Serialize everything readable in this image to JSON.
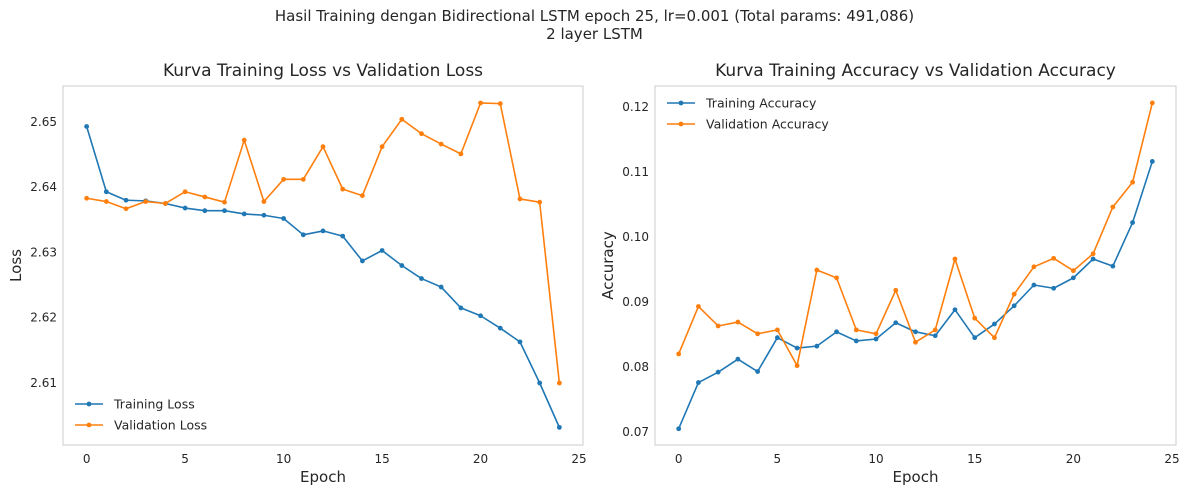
{
  "figure": {
    "suptitle_line1": "Hasil Training dengan Bidirectional LSTM epoch 25, lr=0.001 (Total params: 491,086)",
    "suptitle_line2": "2 layer LSTM"
  },
  "colors": {
    "training": "#1f77b4",
    "validation": "#ff7f0e",
    "axes_edge": "#cccccc",
    "text": "#262626"
  },
  "chart_data": [
    {
      "type": "line",
      "title": "Kurva Training Loss vs Validation Loss",
      "xlabel": "Epoch",
      "ylabel": "Loss",
      "xlim": [
        -1.2,
        25.2
      ],
      "ylim": [
        2.6005,
        2.6555
      ],
      "xticks": [
        0,
        5,
        10,
        15,
        20,
        25
      ],
      "yticks": [
        2.61,
        2.62,
        2.63,
        2.64,
        2.65
      ],
      "ytick_labels": [
        "2.61",
        "2.62",
        "2.63",
        "2.64",
        "2.65"
      ],
      "grid": false,
      "legend_position": "lower-left",
      "x": [
        0,
        1,
        2,
        3,
        4,
        5,
        6,
        7,
        8,
        9,
        10,
        11,
        12,
        13,
        14,
        15,
        16,
        17,
        18,
        19,
        20,
        21,
        22,
        23,
        24
      ],
      "series": [
        {
          "name": "Training Loss",
          "color": "#1f77b4",
          "values": [
            2.6493,
            2.6393,
            2.638,
            2.6379,
            2.6375,
            2.6368,
            2.6364,
            2.6364,
            2.6359,
            2.6357,
            2.6352,
            2.6327,
            2.6333,
            2.6325,
            2.6287,
            2.6303,
            2.628,
            2.626,
            2.6247,
            2.6215,
            2.6203,
            2.6184,
            2.6163,
            2.61,
            2.6032
          ]
        },
        {
          "name": "Validation Loss",
          "color": "#ff7f0e",
          "values": [
            2.6383,
            2.6378,
            2.6367,
            2.6378,
            2.6375,
            2.6393,
            2.6385,
            2.6377,
            2.6472,
            2.6378,
            2.6412,
            2.6412,
            2.6462,
            2.6397,
            2.6387,
            2.6462,
            2.6504,
            2.6482,
            2.6466,
            2.6451,
            2.6529,
            2.6528,
            2.6382,
            2.6377,
            2.61
          ]
        }
      ]
    },
    {
      "type": "line",
      "title": "Kurva Training Accuracy vs Validation Accuracy",
      "xlabel": "Epoch",
      "ylabel": "Accuracy",
      "xlim": [
        -1.2,
        25.2
      ],
      "ylim": [
        0.068,
        0.1232
      ],
      "xticks": [
        0,
        5,
        10,
        15,
        20,
        25
      ],
      "yticks": [
        0.07,
        0.08,
        0.09,
        0.1,
        0.11,
        0.12
      ],
      "ytick_labels": [
        "0.07",
        "0.08",
        "0.09",
        "0.10",
        "0.11",
        "0.12"
      ],
      "grid": false,
      "legend_position": "upper-left",
      "x": [
        0,
        1,
        2,
        3,
        4,
        5,
        6,
        7,
        8,
        9,
        10,
        11,
        12,
        13,
        14,
        15,
        16,
        17,
        18,
        19,
        20,
        21,
        22,
        23,
        24
      ],
      "series": [
        {
          "name": "Training Accuracy",
          "color": "#1f77b4",
          "values": [
            0.0705,
            0.0776,
            0.0792,
            0.0812,
            0.0793,
            0.0845,
            0.0829,
            0.0832,
            0.0854,
            0.084,
            0.0843,
            0.0868,
            0.0854,
            0.0848,
            0.0888,
            0.0845,
            0.0866,
            0.0894,
            0.0926,
            0.0921,
            0.0937,
            0.0966,
            0.0955,
            0.1022,
            0.1116
          ]
        },
        {
          "name": "Validation Accuracy",
          "color": "#ff7f0e",
          "values": [
            0.082,
            0.0893,
            0.0863,
            0.0869,
            0.0851,
            0.0857,
            0.0802,
            0.0949,
            0.0937,
            0.0857,
            0.0851,
            0.0918,
            0.0838,
            0.0857,
            0.0966,
            0.0875,
            0.0845,
            0.0912,
            0.0954,
            0.0967,
            0.0948,
            0.0974,
            0.1046,
            0.1084,
            0.1206
          ]
        }
      ]
    }
  ]
}
